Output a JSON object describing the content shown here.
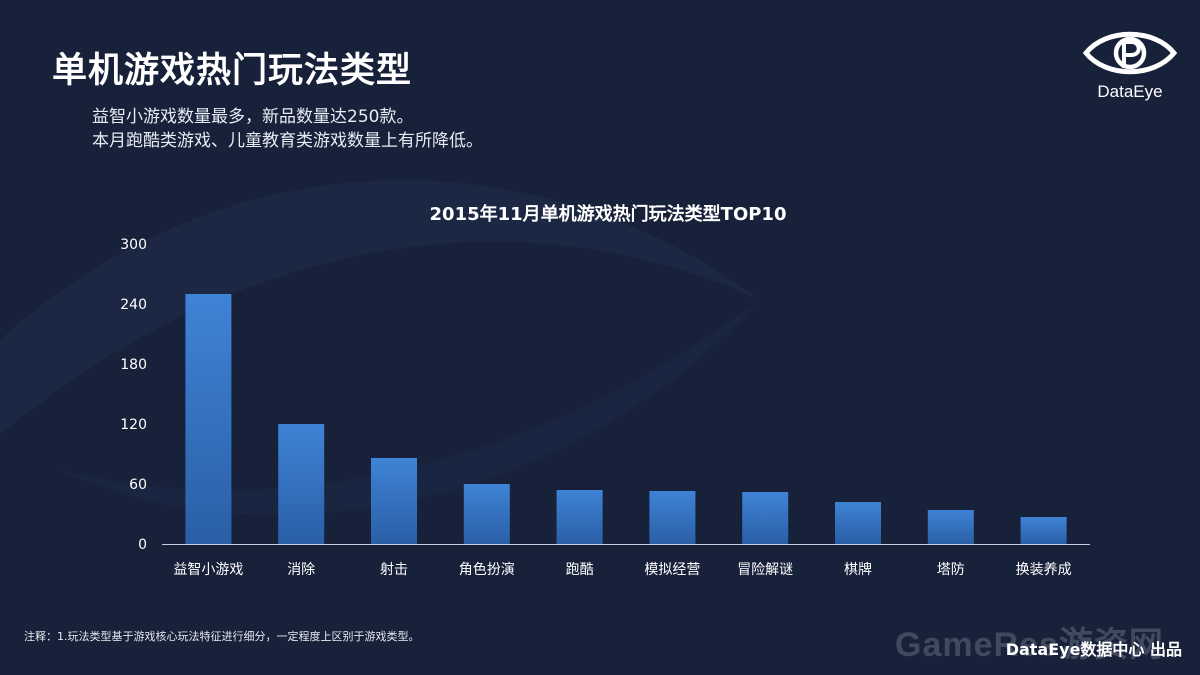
{
  "page": {
    "title": "单机游戏热门玩法类型",
    "subtitle_lines": [
      "益智小游戏数量最多，新品数量达250款。",
      "本月跑酷类游戏、儿童教育类游戏数量上有所降低。"
    ],
    "logo_text": "DataEye",
    "footnote": "注释：1.玩法类型基于游戏核心玩法特征进行细分，一定程度上区别于游戏类型。",
    "watermark": "GameRes游资网",
    "credit": "DataEye数据中心 出品"
  },
  "colors": {
    "background": "#17213a",
    "bar_top": "#3f83d6",
    "bar_bottom": "#2a5fa6",
    "text": "#ffffff"
  },
  "chart_data": {
    "type": "bar",
    "title": "2015年11月单机游戏热门玩法类型TOP10",
    "categories": [
      "益智小游戏",
      "消除",
      "射击",
      "角色扮演",
      "跑酷",
      "模拟经营",
      "冒险解谜",
      "棋牌",
      "塔防",
      "换装养成"
    ],
    "values": [
      250,
      120,
      86,
      60,
      54,
      53,
      52,
      42,
      34,
      27
    ],
    "yticks": [
      0,
      60,
      120,
      180,
      240,
      300
    ],
    "ylim": [
      0,
      300
    ],
    "grid": false,
    "legend": "none",
    "xlabel": "",
    "ylabel": ""
  }
}
